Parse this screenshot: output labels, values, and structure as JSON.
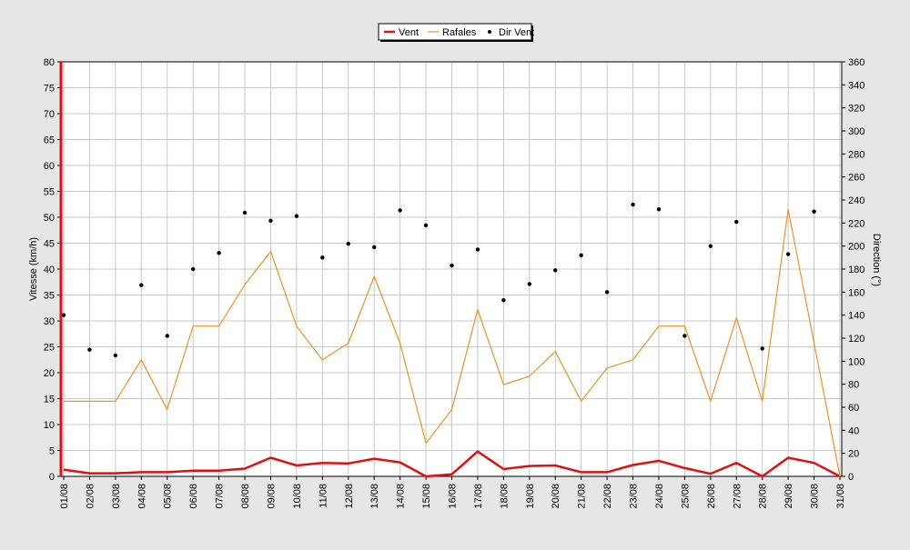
{
  "chart_data": {
    "type": "line",
    "categories": [
      "01/08",
      "02/08",
      "03/08",
      "04/08",
      "05/08",
      "06/08",
      "07/08",
      "08/08",
      "09/08",
      "10/08",
      "11/08",
      "12/08",
      "13/08",
      "14/08",
      "15/08",
      "16/08",
      "17/08",
      "18/08",
      "19/08",
      "20/08",
      "21/08",
      "22/08",
      "23/08",
      "24/08",
      "25/08",
      "26/08",
      "27/08",
      "28/08",
      "29/08",
      "30/08",
      "31/08"
    ],
    "ylabel": "Vitesse (km/h)",
    "ylabel_right": "Direction (°)",
    "ylim": [
      0,
      80
    ],
    "ylim_right": [
      0,
      360
    ],
    "yticks": [
      0,
      5,
      10,
      15,
      20,
      25,
      30,
      35,
      40,
      45,
      50,
      55,
      60,
      65,
      70,
      75,
      80
    ],
    "yticks_right": [
      0,
      20,
      40,
      60,
      80,
      100,
      120,
      140,
      160,
      180,
      200,
      220,
      240,
      260,
      280,
      300,
      320,
      340,
      360
    ],
    "grid": true,
    "legend_position": "top-center",
    "series": [
      {
        "name": "Vent",
        "axis": "left",
        "style": "line",
        "color": "#e01010",
        "values": [
          1.3,
          0.6,
          0.6,
          0.8,
          0.8,
          1.1,
          1.1,
          1.5,
          3.6,
          2.1,
          2.6,
          2.5,
          3.4,
          2.7,
          0,
          0.4,
          4.8,
          1.4,
          2.0,
          2.1,
          0.8,
          0.8,
          2.2,
          3.0,
          1.6,
          0.5,
          2.6,
          0,
          3.6,
          2.6,
          0
        ]
      },
      {
        "name": "Rafales",
        "axis": "left",
        "style": "line",
        "color": "#f0902a",
        "values": [
          14.5,
          14.5,
          14.5,
          22.5,
          12.9,
          29.0,
          29.0,
          37.0,
          43.4,
          29.0,
          22.5,
          25.7,
          38.6,
          25.7,
          6.4,
          12.9,
          32.2,
          17.7,
          19.3,
          24.1,
          14.5,
          20.9,
          22.5,
          29.0,
          29.0,
          14.5,
          30.6,
          14.5,
          51.5,
          25.7,
          0
        ]
      },
      {
        "name": "Dir Vent",
        "axis": "right",
        "style": "points",
        "color": "#000000",
        "values": [
          140,
          110,
          105,
          166,
          122,
          180,
          194,
          229,
          222,
          226,
          190,
          202,
          199,
          231,
          218,
          183,
          197,
          153,
          167,
          179,
          192,
          160,
          236,
          232,
          122,
          200,
          221,
          111,
          193,
          230,
          null
        ]
      }
    ]
  }
}
